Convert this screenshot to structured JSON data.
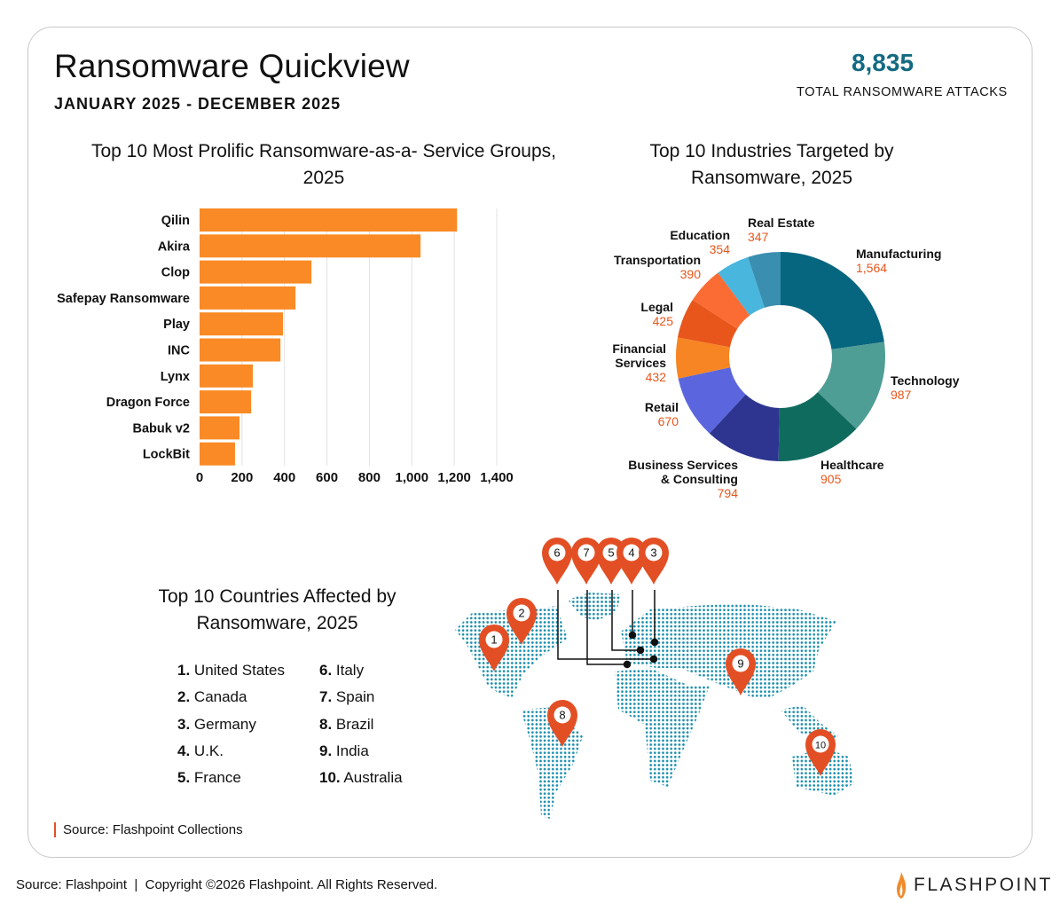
{
  "header": {
    "title": "Ransomware Quickview",
    "date_range": "JANUARY 2025 - DECEMBER 2025",
    "total_value": "8,835",
    "total_label": "TOTAL RANSOMWARE ATTACKS"
  },
  "chart_data": [
    {
      "type": "bar",
      "orientation": "horizontal",
      "title": "Top 10 Most Prolific Ransomware-as-a- Service Groups, 2025",
      "categories": [
        "Qilin",
        "Akira",
        "Clop",
        "Safepay Ransomware",
        "Play",
        "INC",
        "Lynx",
        "Dragon Force",
        "Babuk v2",
        "LockBit"
      ],
      "values": [
        1213,
        1041,
        527,
        452,
        393,
        381,
        251,
        243,
        188,
        167
      ],
      "xlim": [
        0,
        1400
      ],
      "xticks": [
        0,
        200,
        400,
        600,
        800,
        1000,
        1200,
        1400
      ],
      "xtick_labels": [
        "0",
        "200",
        "400",
        "600",
        "800",
        "1,000",
        "1,200",
        "1,400"
      ],
      "grid": true,
      "color": "#f98a25"
    },
    {
      "type": "pie",
      "donut": true,
      "title": "Top 10 Industries Targeted by Ransomware, 2025",
      "slices": [
        {
          "label": "Manufacturing",
          "value": 1564,
          "value_label": "1,564",
          "color": "#07667f"
        },
        {
          "label": "Technology",
          "value": 987,
          "value_label": "987",
          "color": "#4f9e96"
        },
        {
          "label": "Healthcare",
          "value": 905,
          "value_label": "905",
          "color": "#0f6b5e"
        },
        {
          "label": "Business Services & Consulting",
          "value": 794,
          "value_label": "794",
          "color": "#2d3590"
        },
        {
          "label": "Retail",
          "value": 670,
          "value_label": "670",
          "color": "#5b66de"
        },
        {
          "label": "Financial Services",
          "value": 432,
          "value_label": "432",
          "color": "#f78523"
        },
        {
          "label": "Legal",
          "value": 425,
          "value_label": "425",
          "color": "#e8561b"
        },
        {
          "label": "Transportation",
          "value": 390,
          "value_label": "390",
          "color": "#fb6c35"
        },
        {
          "label": "Education",
          "value": 354,
          "value_label": "354",
          "color": "#49b6de"
        },
        {
          "label": "Real Estate",
          "value": 347,
          "value_label": "347",
          "color": "#3a8fb0"
        }
      ],
      "value_color": "#e8561b"
    }
  ],
  "map": {
    "title": "Top 10 Countries Affected by Ransomware, 2025",
    "countries": [
      {
        "rank": "1.",
        "name": "United States"
      },
      {
        "rank": "2.",
        "name": "Canada"
      },
      {
        "rank": "3.",
        "name": "Germany"
      },
      {
        "rank": "4.",
        "name": "U.K."
      },
      {
        "rank": "5.",
        "name": "France"
      },
      {
        "rank": "6.",
        "name": "Italy"
      },
      {
        "rank": "7.",
        "name": "Spain"
      },
      {
        "rank": "8.",
        "name": "Brazil"
      },
      {
        "rank": "9.",
        "name": "India"
      },
      {
        "rank": "10.",
        "name": "Australia"
      }
    ],
    "pin_labels": [
      "1",
      "2",
      "3",
      "4",
      "5",
      "6",
      "7",
      "8",
      "9",
      "10"
    ],
    "pin_color": "#e34f24",
    "dot_color": "#1b8fae"
  },
  "source": "Source: Flashpoint Collections",
  "footer": {
    "text": "Source: Flashpoint  |  Copyright ©2026 Flashpoint. All Rights Reserved.",
    "logo": "FLASHPOINT"
  }
}
